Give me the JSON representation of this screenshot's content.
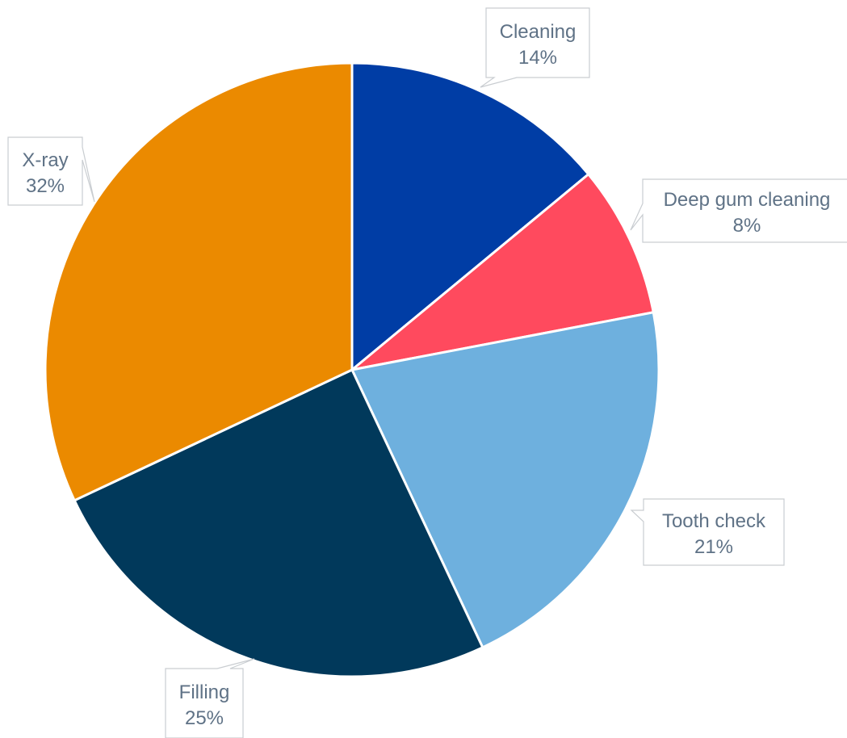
{
  "chart_data": {
    "type": "pie",
    "title": "",
    "legend": "none",
    "slices": [
      {
        "label": "Cleaning",
        "value": 14,
        "value_label": "14%",
        "color": "#003DA5"
      },
      {
        "label": "Deep gum cleaning",
        "value": 8,
        "value_label": "8%",
        "color": "#FF4A5E"
      },
      {
        "label": "Tooth check",
        "value": 21,
        "value_label": "21%",
        "color": "#6EB0DE"
      },
      {
        "label": "Filling",
        "value": 25,
        "value_label": "25%",
        "color": "#01395B"
      },
      {
        "label": "X-ray",
        "value": 32,
        "value_label": "32%",
        "color": "#EB8A00"
      }
    ],
    "colors": {
      "label_text": "#5F7286",
      "callout_border": "#C9CDD1",
      "slice_border": "#FFFFFF"
    }
  }
}
